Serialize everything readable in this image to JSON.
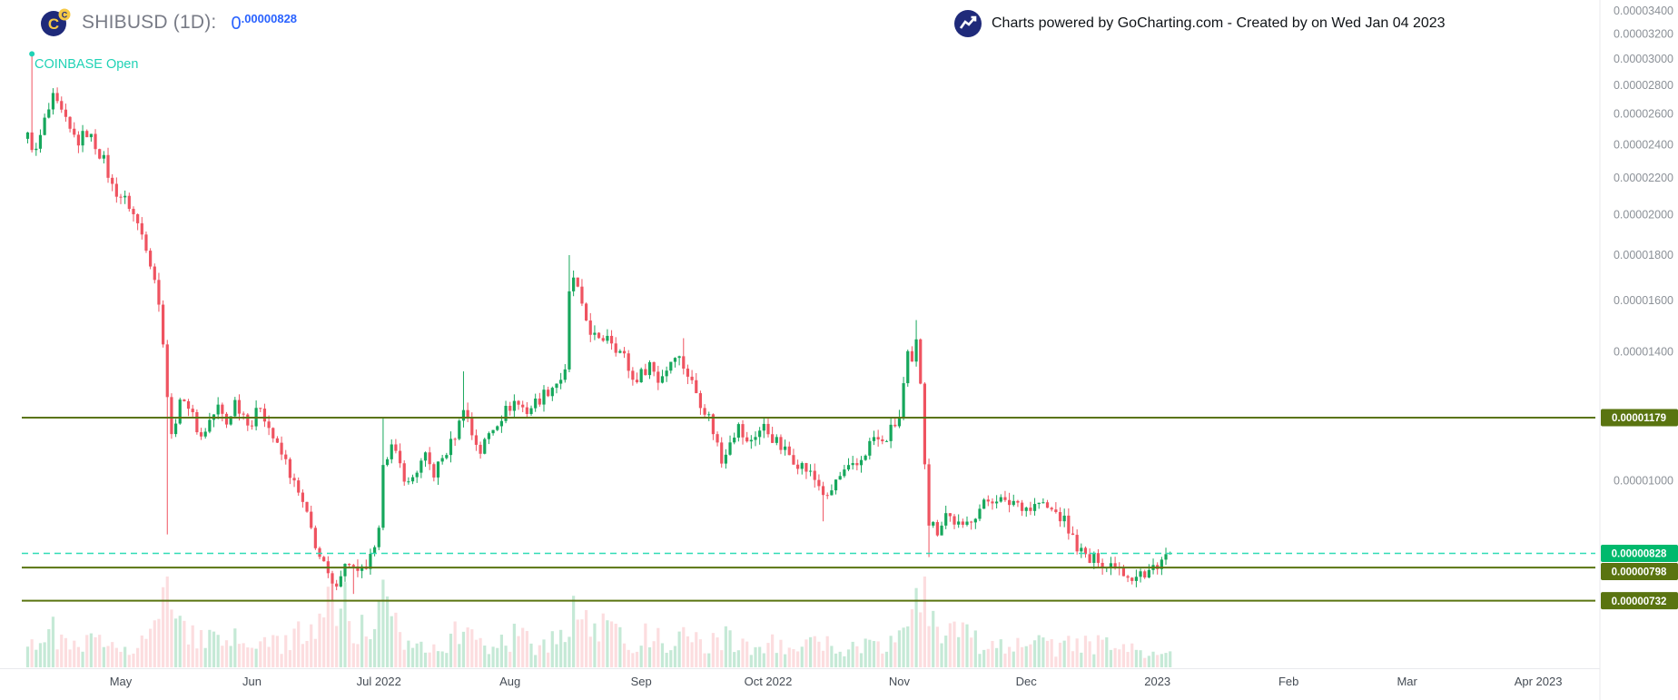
{
  "header": {
    "symbol_title": "SHIBUSD (1D):",
    "price_whole": "0",
    "price_fraction": ".00000828",
    "exchange_label": "COINBASE Open",
    "attribution_text": "Charts powered by GoCharting.com - Created by  on Wed Jan 04 2023"
  },
  "colors": {
    "up": "#16a75c",
    "down": "#ef5360",
    "level": "#5a7410",
    "current_line": "#30dcb6",
    "current_badge": "#00b96d",
    "axis_text": "#8b9097",
    "month_text": "#454c55",
    "border": "#e8eaed",
    "legend_text": "#787b86",
    "price_text": "#2962ff",
    "exchange_text": "#1fd2b5",
    "attribution_text": "#101418",
    "logo_navy": "#1f2a7a",
    "logo_yellow": "#f6c945"
  },
  "chart_data": {
    "type": "candlestick",
    "title": "SHIBUSD (1D)",
    "exchange": "COINBASE",
    "interval": "1D",
    "scale": "log",
    "last_price": "0.00000828",
    "last_close_1e8": 828,
    "day_range": [
      0,
      270
    ],
    "y_ticks": [
      "0.00003400",
      "0.00003200",
      "0.00003000",
      "0.00002800",
      "0.00002600",
      "0.00002400",
      "0.00002200",
      "0.00002000",
      "0.00001800",
      "0.00001600",
      "0.00001400",
      "0.00001000"
    ],
    "x_ticks": [
      {
        "label": "May",
        "day": 22
      },
      {
        "label": "Jun",
        "day": 53
      },
      {
        "label": "Jul 2022",
        "day": 83
      },
      {
        "label": "Aug",
        "day": 114
      },
      {
        "label": "Sep",
        "day": 145
      },
      {
        "label": "Oct 2022",
        "day": 175
      },
      {
        "label": "Nov",
        "day": 206
      },
      {
        "label": "Dec",
        "day": 236
      },
      {
        "label": "2023",
        "day": 267
      },
      {
        "label": "Feb",
        "day": 298
      },
      {
        "label": "Mar",
        "day": 326
      },
      {
        "label": "Apr 2023",
        "day": 357
      }
    ],
    "levels": [
      {
        "label": "0.00001179",
        "price": 1.179e-05,
        "style": "solid"
      },
      {
        "label": "0.00000828",
        "price": 8.28e-06,
        "style": "dashed"
      },
      {
        "label": "0.00000798",
        "price": 7.98e-06,
        "style": "solid"
      },
      {
        "label": "0.00000732",
        "price": 7.32e-06,
        "style": "solid"
      }
    ],
    "open_marker": {
      "day": 1,
      "price_1e8": 3040
    },
    "price_path_1e8": [
      [
        0,
        2450
      ],
      [
        2,
        2350
      ],
      [
        4,
        2550
      ],
      [
        6,
        2700
      ],
      [
        8,
        2600
      ],
      [
        10,
        2480
      ],
      [
        12,
        2420
      ],
      [
        14,
        2480
      ],
      [
        16,
        2400
      ],
      [
        18,
        2300
      ],
      [
        20,
        2150
      ],
      [
        22,
        2100
      ],
      [
        24,
        2050
      ],
      [
        26,
        1950
      ],
      [
        28,
        1850
      ],
      [
        30,
        1700
      ],
      [
        31,
        1575
      ],
      [
        32,
        1450
      ],
      [
        33,
        1250
      ],
      [
        34,
        1120
      ],
      [
        35,
        1180
      ],
      [
        37,
        1250
      ],
      [
        39,
        1180
      ],
      [
        41,
        1120
      ],
      [
        43,
        1170
      ],
      [
        45,
        1210
      ],
      [
        47,
        1160
      ],
      [
        49,
        1230
      ],
      [
        51,
        1190
      ],
      [
        53,
        1160
      ],
      [
        55,
        1220
      ],
      [
        57,
        1150
      ],
      [
        59,
        1090
      ],
      [
        61,
        1050
      ],
      [
        63,
        990
      ],
      [
        65,
        940
      ],
      [
        67,
        880
      ],
      [
        69,
        820
      ],
      [
        71,
        780
      ],
      [
        72,
        755
      ],
      [
        74,
        790
      ],
      [
        76,
        810
      ],
      [
        78,
        780
      ],
      [
        80,
        800
      ],
      [
        82,
        830
      ],
      [
        83,
        870
      ],
      [
        84,
        1060
      ],
      [
        86,
        1090
      ],
      [
        88,
        1040
      ],
      [
        90,
        990
      ],
      [
        92,
        1030
      ],
      [
        94,
        1060
      ],
      [
        96,
        1020
      ],
      [
        98,
        1060
      ],
      [
        100,
        1100
      ],
      [
        102,
        1160
      ],
      [
        103,
        1220
      ],
      [
        105,
        1130
      ],
      [
        107,
        1080
      ],
      [
        109,
        1130
      ],
      [
        111,
        1170
      ],
      [
        113,
        1200
      ],
      [
        115,
        1230
      ],
      [
        118,
        1200
      ],
      [
        121,
        1240
      ],
      [
        124,
        1280
      ],
      [
        127,
        1320
      ],
      [
        128,
        1620
      ],
      [
        129,
        1700
      ],
      [
        130,
        1640
      ],
      [
        131,
        1560
      ],
      [
        133,
        1480
      ],
      [
        135,
        1430
      ],
      [
        137,
        1470
      ],
      [
        139,
        1420
      ],
      [
        141,
        1380
      ],
      [
        143,
        1300
      ],
      [
        145,
        1320
      ],
      [
        147,
        1360
      ],
      [
        149,
        1300
      ],
      [
        151,
        1340
      ],
      [
        153,
        1400
      ],
      [
        155,
        1350
      ],
      [
        157,
        1290
      ],
      [
        159,
        1230
      ],
      [
        161,
        1180
      ],
      [
        163,
        1100
      ],
      [
        164,
        1050
      ],
      [
        166,
        1120
      ],
      [
        168,
        1150
      ],
      [
        170,
        1100
      ],
      [
        172,
        1130
      ],
      [
        174,
        1150
      ],
      [
        176,
        1120
      ],
      [
        178,
        1090
      ],
      [
        181,
        1060
      ],
      [
        184,
        1030
      ],
      [
        187,
        990
      ],
      [
        189,
        950
      ],
      [
        191,
        1000
      ],
      [
        193,
        1020
      ],
      [
        196,
        1040
      ],
      [
        198,
        1080
      ],
      [
        200,
        1120
      ],
      [
        202,
        1100
      ],
      [
        204,
        1140
      ],
      [
        206,
        1180
      ],
      [
        207,
        1280
      ],
      [
        208,
        1380
      ],
      [
        209,
        1350
      ],
      [
        210,
        1430
      ],
      [
        211,
        1300
      ],
      [
        212,
        1060
      ],
      [
        213,
        900
      ],
      [
        215,
        880
      ],
      [
        217,
        920
      ],
      [
        219,
        900
      ],
      [
        221,
        880
      ],
      [
        223,
        910
      ],
      [
        225,
        930
      ],
      [
        227,
        950
      ],
      [
        229,
        960
      ],
      [
        231,
        940
      ],
      [
        233,
        950
      ],
      [
        235,
        940
      ],
      [
        237,
        930
      ],
      [
        239,
        945
      ],
      [
        241,
        930
      ],
      [
        243,
        920
      ],
      [
        245,
        900
      ],
      [
        247,
        860
      ],
      [
        249,
        830
      ],
      [
        251,
        810
      ],
      [
        253,
        820
      ],
      [
        255,
        800
      ],
      [
        257,
        810
      ],
      [
        259,
        790
      ],
      [
        261,
        780
      ],
      [
        263,
        790
      ],
      [
        264,
        775
      ],
      [
        266,
        800
      ],
      [
        268,
        815
      ],
      [
        270,
        828
      ]
    ],
    "wick_overrides": [
      {
        "day": 1,
        "high": 3040
      },
      {
        "day": 33,
        "low": 870
      },
      {
        "day": 72,
        "low": 732
      },
      {
        "day": 77,
        "low": 745
      },
      {
        "day": 84,
        "high": 1180
      },
      {
        "day": 103,
        "high": 1330
      },
      {
        "day": 128,
        "high": 1800
      },
      {
        "day": 155,
        "high": 1450
      },
      {
        "day": 188,
        "low": 900
      },
      {
        "day": 210,
        "high": 1520
      },
      {
        "day": 213,
        "low": 820
      },
      {
        "day": 262,
        "low": 758
      }
    ],
    "volume_path": [
      [
        0,
        0.35
      ],
      [
        3,
        0.3
      ],
      [
        6,
        0.4
      ],
      [
        9,
        0.25
      ],
      [
        12,
        0.2
      ],
      [
        15,
        0.3
      ],
      [
        18,
        0.25
      ],
      [
        21,
        0.3
      ],
      [
        24,
        0.25
      ],
      [
        27,
        0.3
      ],
      [
        30,
        0.45
      ],
      [
        32,
        0.7
      ],
      [
        33,
        1.0
      ],
      [
        34,
        0.85
      ],
      [
        35,
        0.6
      ],
      [
        37,
        0.45
      ],
      [
        40,
        0.35
      ],
      [
        43,
        0.3
      ],
      [
        46,
        0.25
      ],
      [
        49,
        0.3
      ],
      [
        52,
        0.25
      ],
      [
        55,
        0.3
      ],
      [
        58,
        0.25
      ],
      [
        61,
        0.3
      ],
      [
        64,
        0.35
      ],
      [
        67,
        0.5
      ],
      [
        69,
        0.65
      ],
      [
        71,
        0.8
      ],
      [
        72,
        0.7
      ],
      [
        74,
        0.8
      ],
      [
        76,
        0.5
      ],
      [
        79,
        0.4
      ],
      [
        82,
        0.35
      ],
      [
        84,
        0.75
      ],
      [
        86,
        0.45
      ],
      [
        89,
        0.35
      ],
      [
        92,
        0.3
      ],
      [
        95,
        0.25
      ],
      [
        98,
        0.3
      ],
      [
        101,
        0.35
      ],
      [
        103,
        0.45
      ],
      [
        106,
        0.3
      ],
      [
        109,
        0.25
      ],
      [
        112,
        0.3
      ],
      [
        115,
        0.35
      ],
      [
        118,
        0.3
      ],
      [
        121,
        0.25
      ],
      [
        124,
        0.3
      ],
      [
        127,
        0.4
      ],
      [
        128,
        0.65
      ],
      [
        130,
        0.55
      ],
      [
        132,
        0.5
      ],
      [
        134,
        0.45
      ],
      [
        137,
        0.4
      ],
      [
        140,
        0.35
      ],
      [
        143,
        0.3
      ],
      [
        146,
        0.35
      ],
      [
        149,
        0.3
      ],
      [
        152,
        0.28
      ],
      [
        155,
        0.32
      ],
      [
        158,
        0.28
      ],
      [
        161,
        0.25
      ],
      [
        163,
        0.35
      ],
      [
        166,
        0.3
      ],
      [
        169,
        0.25
      ],
      [
        172,
        0.22
      ],
      [
        175,
        0.28
      ],
      [
        178,
        0.22
      ],
      [
        181,
        0.2
      ],
      [
        184,
        0.22
      ],
      [
        187,
        0.28
      ],
      [
        190,
        0.22
      ],
      [
        193,
        0.2
      ],
      [
        196,
        0.22
      ],
      [
        199,
        0.25
      ],
      [
        202,
        0.28
      ],
      [
        205,
        0.35
      ],
      [
        207,
        0.6
      ],
      [
        209,
        0.75
      ],
      [
        211,
        0.65
      ],
      [
        212,
        0.8
      ],
      [
        213,
        0.75
      ],
      [
        215,
        0.5
      ],
      [
        218,
        0.4
      ],
      [
        221,
        0.35
      ],
      [
        224,
        0.3
      ],
      [
        227,
        0.25
      ],
      [
        230,
        0.3
      ],
      [
        233,
        0.25
      ],
      [
        236,
        0.22
      ],
      [
        239,
        0.25
      ],
      [
        242,
        0.22
      ],
      [
        245,
        0.25
      ],
      [
        248,
        0.3
      ],
      [
        251,
        0.28
      ],
      [
        254,
        0.25
      ],
      [
        257,
        0.22
      ],
      [
        260,
        0.25
      ],
      [
        263,
        0.2
      ],
      [
        266,
        0.18
      ],
      [
        268,
        0.15
      ],
      [
        270,
        0.18
      ]
    ]
  }
}
